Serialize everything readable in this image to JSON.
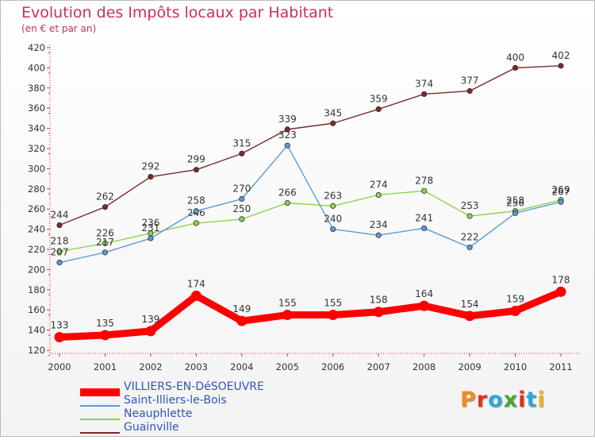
{
  "title": "Evolution des Impôts locaux par Habitant",
  "subtitle": "(en € et par an)",
  "logo_text": "Proxiti",
  "logo_colors": [
    "#f28c1e",
    "#e2321a",
    "#2ea6d8",
    "#49a43a",
    "#e2321a",
    "#2ea6d8",
    "#f2b21e"
  ],
  "chart_data": {
    "type": "line",
    "x": [
      "2000",
      "2001",
      "2002",
      "2003",
      "2004",
      "2005",
      "2006",
      "2007",
      "2008",
      "2009",
      "2010",
      "2011"
    ],
    "ylim": [
      120,
      420
    ],
    "yticks": [
      120,
      140,
      160,
      180,
      200,
      220,
      240,
      260,
      280,
      300,
      320,
      340,
      360,
      380,
      400,
      420
    ],
    "grid": false,
    "legend_position": "bottom-left",
    "series": [
      {
        "name": "VILLIERS-EN-DéSOEUVRE",
        "color": "#ff0000",
        "values": [
          133,
          135,
          139,
          174,
          149,
          155,
          155,
          158,
          164,
          154,
          159,
          178
        ]
      },
      {
        "name": "Saint-Illiers-le-Bois",
        "color": "#5b9bd5",
        "values": [
          207,
          217,
          231,
          258,
          270,
          323,
          240,
          234,
          241,
          222,
          256,
          267
        ]
      },
      {
        "name": "Neauphlette",
        "color": "#8fd14f",
        "values": [
          218,
          226,
          236,
          246,
          250,
          266,
          263,
          274,
          278,
          253,
          258,
          269
        ]
      },
      {
        "name": "Guainville",
        "color": "#7a2a2a",
        "values": [
          244,
          262,
          292,
          299,
          315,
          339,
          345,
          359,
          374,
          377,
          400,
          402
        ]
      }
    ]
  }
}
